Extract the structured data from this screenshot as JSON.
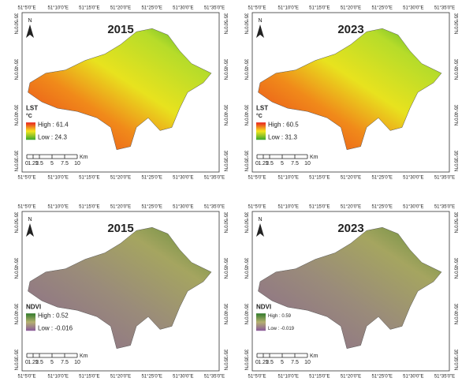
{
  "lon_labels": [
    "51°5'0\"E",
    "51°10'0\"E",
    "51°15'0\"E",
    "51°20'0\"E",
    "51°25'0\"E",
    "51°30'0\"E",
    "51°35'0\"E"
  ],
  "lat_labels": [
    "35°50'0\"N",
    "35°45'0\"N",
    "35°40'0\"N",
    "35°35'0\"N"
  ],
  "north": "N",
  "scale": {
    "labels": [
      "0",
      "1.25",
      "2.5",
      "5",
      "7.5",
      "10"
    ],
    "unit": "Km"
  },
  "panels": [
    {
      "title": "2015",
      "legend": {
        "title": "LST",
        "unit": "°C",
        "high": "High : 61.4",
        "low": "Low : 24.3"
      }
    },
    {
      "title": "2023",
      "legend": {
        "title": "LST",
        "unit": "°C",
        "high": "High : 60.5",
        "low": "Low : 31.3"
      }
    },
    {
      "title": "2015",
      "legend": {
        "title": "NDVI",
        "high": "High : 0.52",
        "low": "Low : -0.016"
      }
    },
    {
      "title": "2023",
      "legend": {
        "title": "NDVI",
        "high": "High : 0.59",
        "low": "Low : -0.019"
      }
    }
  ]
}
